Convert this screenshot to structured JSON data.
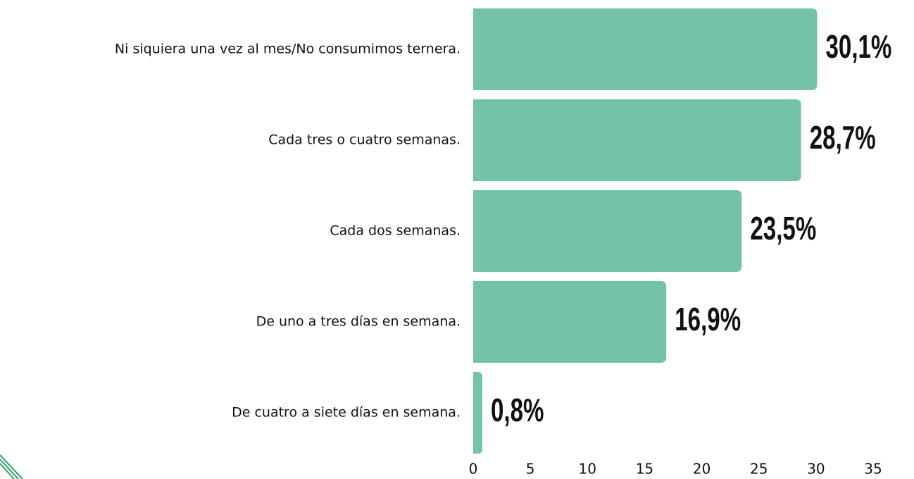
{
  "chart_data": {
    "type": "bar",
    "orientation": "horizontal",
    "categories": [
      "Ni siquiera una vez al mes/No consumimos ternera.",
      "Cada tres o cuatro semanas.",
      "Cada dos semanas.",
      "De uno a tres días en semana.",
      "De cuatro a siete días en semana."
    ],
    "values": [
      30.1,
      28.7,
      23.5,
      16.9,
      0.8
    ],
    "value_labels": [
      "30,1%",
      "28,7%",
      "23,5%",
      "16,9%",
      "0,8%"
    ],
    "color": "#74c3a6",
    "xlim": [
      0,
      35
    ],
    "xticks": [
      0,
      5,
      10,
      15,
      20,
      25,
      30,
      35
    ],
    "grid": false
  }
}
